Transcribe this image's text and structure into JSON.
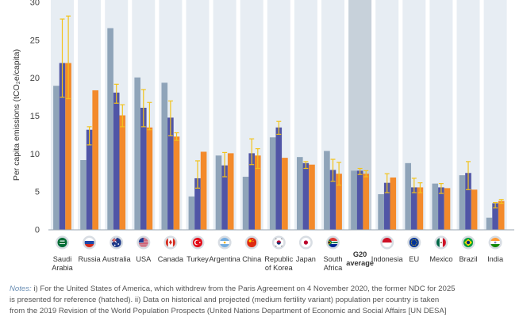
{
  "chart_data": {
    "type": "bar",
    "ylabel": "Per capita emissions (tCO₂e/capita)",
    "ylim": [
      0,
      30
    ],
    "yticks": [
      0,
      5,
      10,
      15,
      20,
      25,
      30
    ],
    "grid": false,
    "highlight_category": "G20 average",
    "colors": {
      "series1": "#8fa4b9",
      "series2": "#5055a6",
      "series3": "#f38a2b",
      "error": "#f2c31c",
      "band": "#e7edf3",
      "band_highlight": "#c7d1da"
    },
    "categories": [
      {
        "label": [
          "Saudi",
          "Arabia"
        ],
        "flag": "saudi-arabia",
        "values": [
          19.0,
          22.0,
          22.0
        ],
        "err2": [
          17.5,
          27.8
        ],
        "err3": [
          17.3,
          28.2
        ]
      },
      {
        "label": [
          "Russia"
        ],
        "flag": "russia",
        "values": [
          9.2,
          13.2,
          18.4
        ],
        "err2": [
          11.2,
          13.6
        ],
        "err3": null
      },
      {
        "label": [
          "Australia"
        ],
        "flag": "australia",
        "values": [
          26.6,
          18.1,
          15.1
        ],
        "err2": [
          16.7,
          19.2
        ],
        "err3": [
          13.6,
          16.5
        ]
      },
      {
        "label": [
          "USA"
        ],
        "flag": "usa",
        "values": [
          20.1,
          16.1,
          13.5
        ],
        "err2": [
          13.6,
          18.5
        ],
        "err3": [
          13.2,
          16.8
        ]
      },
      {
        "label": [
          "Canada"
        ],
        "flag": "canada",
        "values": [
          19.4,
          14.8,
          12.3
        ],
        "err2": [
          12.4,
          17.0
        ],
        "err3": [
          11.8,
          12.8
        ]
      },
      {
        "label": [
          "Turkey"
        ],
        "flag": "turkey",
        "values": [
          4.4,
          6.8,
          10.3
        ],
        "err2": [
          5.5,
          9.1
        ],
        "err3": null
      },
      {
        "label": [
          "Argentina"
        ],
        "flag": "argentina",
        "values": [
          9.8,
          8.5,
          10.1
        ],
        "err2": [
          7.0,
          10.2
        ],
        "err3": null
      },
      {
        "label": [
          "China"
        ],
        "flag": "china",
        "values": [
          7.0,
          10.1,
          9.8
        ],
        "err2": [
          8.6,
          12.0
        ],
        "err3": [
          8.1,
          10.7
        ]
      },
      {
        "label": [
          "Republic",
          "of Korea"
        ],
        "flag": "korea",
        "values": [
          12.2,
          13.5,
          9.5
        ],
        "err2": [
          12.6,
          14.3
        ],
        "err3": null
      },
      {
        "label": [
          "Japan"
        ],
        "flag": "japan",
        "values": [
          9.6,
          8.8,
          8.6
        ],
        "err2": [
          8.1,
          9.0
        ],
        "err3": null
      },
      {
        "label": [
          "South",
          "Africa"
        ],
        "flag": "south-africa",
        "values": [
          10.4,
          7.9,
          7.4
        ],
        "err2": [
          6.4,
          9.3
        ],
        "err3": [
          5.9,
          8.9
        ]
      },
      {
        "label": [
          "G20",
          "average"
        ],
        "flag": null,
        "values": [
          7.8,
          7.8,
          7.4
        ],
        "err2": [
          7.3,
          8.1
        ],
        "err3": [
          7.0,
          7.8
        ]
      },
      {
        "label": [
          "Indonesia"
        ],
        "flag": "indonesia",
        "values": [
          4.7,
          6.2,
          6.9
        ],
        "err2": [
          4.9,
          7.4
        ],
        "err3": null
      },
      {
        "label": [
          "EU"
        ],
        "flag": "eu",
        "values": [
          8.8,
          5.6,
          5.6
        ],
        "err2": [
          4.9,
          6.8
        ],
        "err3": [
          4.9,
          6.2
        ]
      },
      {
        "label": [
          "Mexico"
        ],
        "flag": "mexico",
        "values": [
          6.1,
          5.6,
          5.5
        ],
        "err2": [
          4.8,
          6.1
        ],
        "err3": null
      },
      {
        "label": [
          "Brazil"
        ],
        "flag": "brazil",
        "values": [
          7.2,
          7.5,
          5.3
        ],
        "err2": [
          5.3,
          9.0
        ],
        "err3": null
      },
      {
        "label": [
          "India"
        ],
        "flag": "india",
        "values": [
          1.6,
          3.5,
          3.8
        ],
        "err2": [
          2.9,
          3.6
        ],
        "err3": [
          3.5,
          4.0
        ]
      }
    ]
  },
  "notes": {
    "label": "Notes:",
    "lines": [
      " i) For the United States of America, which withdrew from the Paris Agreement on 4 November 2020, the former NDC for 2025",
      "is presented for reference (hatched). ii) Data on historical and projected (medium fertility variant) population per country is taken",
      "from the 2019 Revision of the World Population Prospects (United Nations Department of Economic and Social Affairs [UN DESA]"
    ]
  }
}
